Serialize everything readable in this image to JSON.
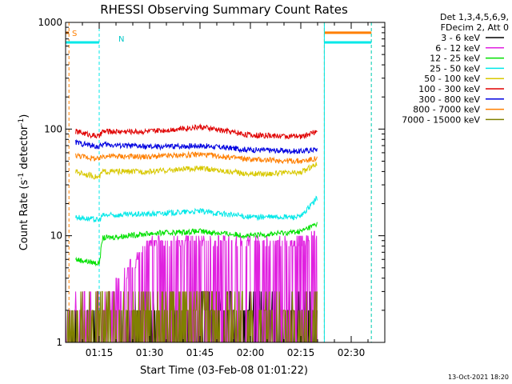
{
  "chart_data": {
    "type": "line",
    "title": "RHESSI Observing Summary Count Rates",
    "xlabel": "Start Time (03-Feb-08 01:01:22)",
    "ylabel_main": "Count Rate (s",
    "ylabel_sup1": "-1",
    "ylabel_mid": " detector",
    "ylabel_sup2": "-1",
    "ylabel_end": ")",
    "y_scale": "log",
    "ylim": [
      1,
      1000
    ],
    "xlim": [
      "01:05",
      "02:40"
    ],
    "x_ticks": [
      "01:15",
      "01:30",
      "01:45",
      "02:00",
      "02:15",
      "02:30"
    ],
    "y_ticks": [
      "1",
      "10",
      "100",
      "1000"
    ],
    "grid": false,
    "legend_placement": "right",
    "legend_header": [
      "Det 1,3,4,5,6,9,",
      "FDecim 2, Att 0"
    ],
    "flag_labels": {
      "saa": "S",
      "night": "N"
    },
    "timestamp": "13-Oct-2021 18:20",
    "series": [
      {
        "name": "3 - 6 keV",
        "color": "#000000",
        "x": [
          "01:05",
          "01:15",
          "01:30",
          "01:45",
          "02:00",
          "02:15",
          "02:20"
        ],
        "values": [
          1,
          1,
          1.8,
          2,
          2,
          1.8,
          2
        ]
      },
      {
        "name": "6 - 12 keV",
        "color": "#e020e0",
        "x": [
          "01:05",
          "01:15",
          "01:30",
          "01:45",
          "02:00",
          "02:15",
          "02:20"
        ],
        "values": [
          1.8,
          2,
          9,
          9,
          9,
          9,
          10
        ]
      },
      {
        "name": "12 - 25 keV",
        "color": "#00e000",
        "x": [
          "01:08",
          "01:15",
          "01:16",
          "01:30",
          "01:45",
          "02:00",
          "02:15",
          "02:20"
        ],
        "values": [
          6,
          5.5,
          9.5,
          10.5,
          11,
          10,
          11,
          13
        ]
      },
      {
        "name": "25 - 50 keV",
        "color": "#00e8e8",
        "x": [
          "01:08",
          "01:15",
          "01:16",
          "01:30",
          "01:45",
          "02:00",
          "02:15",
          "02:20"
        ],
        "values": [
          15,
          14,
          15.5,
          16,
          17,
          15,
          15,
          23
        ]
      },
      {
        "name": "50 - 100 keV",
        "color": "#d8c800",
        "x": [
          "01:08",
          "01:15",
          "01:16",
          "01:30",
          "01:45",
          "02:00",
          "02:15",
          "02:20"
        ],
        "values": [
          40,
          35,
          40,
          40,
          43,
          38,
          39,
          48
        ]
      },
      {
        "name": "100 - 300 keV",
        "color": "#e00000",
        "x": [
          "01:08",
          "01:15",
          "01:16",
          "01:30",
          "01:45",
          "02:00",
          "02:15",
          "02:20"
        ],
        "values": [
          95,
          85,
          95,
          95,
          105,
          88,
          85,
          95
        ]
      },
      {
        "name": "300 - 800 keV",
        "color": "#0000e0",
        "x": [
          "01:08",
          "01:15",
          "01:16",
          "01:30",
          "01:45",
          "02:00",
          "02:15",
          "02:20"
        ],
        "values": [
          75,
          68,
          72,
          68,
          70,
          64,
          62,
          65
        ]
      },
      {
        "name": "800 - 7000 keV",
        "color": "#ff7f00",
        "x": [
          "01:08",
          "01:15",
          "01:16",
          "01:30",
          "01:45",
          "02:00",
          "02:15",
          "02:20"
        ],
        "values": [
          57,
          52,
          56,
          55,
          58,
          52,
          50,
          53
        ]
      },
      {
        "name": "7000 - 15000 keV",
        "color": "#808000",
        "x": [
          "01:05",
          "01:15",
          "01:30",
          "01:45",
          "02:00",
          "02:15",
          "02:20"
        ],
        "values": [
          1.6,
          2,
          2.3,
          2.5,
          1.8,
          1.8,
          2
        ]
      }
    ],
    "flags": [
      {
        "name": "SAA",
        "color": "#ff7f00",
        "start": "01:05",
        "end": "01:06",
        "level": 800
      },
      {
        "name": "Night",
        "color": "#00e8e8",
        "start": "01:05",
        "end": "01:15",
        "level": 650
      },
      {
        "name": "SAA",
        "color": "#ff7f00",
        "start": "02:22",
        "end": "02:36",
        "level": 800
      },
      {
        "name": "Night",
        "color": "#00e8e8",
        "start": "02:22",
        "end": "02:36",
        "level": 650
      }
    ]
  }
}
